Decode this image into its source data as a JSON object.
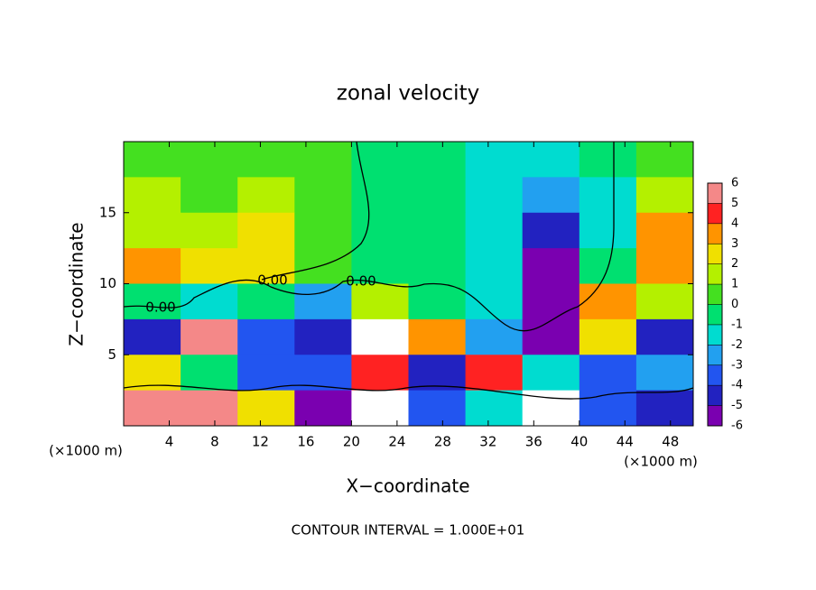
{
  "chart_data": {
    "type": "heatmap",
    "title": "zonal velocity",
    "x_label": "X−coordinate",
    "y_label": "Z−coordinate",
    "x_unit": "(×1000 m)",
    "x_unit_right": "(×1000 m)",
    "footer": "CONTOUR INTERVAL = 1.000E+01",
    "contour_labels": [
      "0.00",
      "0.00",
      "0.00"
    ],
    "xlim": [
      0,
      50
    ],
    "ylim": [
      0,
      20
    ],
    "xticks": [
      4,
      8,
      12,
      16,
      20,
      24,
      28,
      32,
      36,
      40,
      44,
      48
    ],
    "yticks": [
      5,
      10,
      15
    ],
    "x": [
      2.5,
      7.5,
      12.5,
      17.5,
      22.5,
      27.5,
      32.5,
      37.5,
      42.5,
      47.5
    ],
    "y": [
      18.75,
      16.25,
      13.75,
      11.25,
      8.75,
      6.25,
      3.75,
      1.25
    ],
    "z": [
      [
        1,
        1,
        0.5,
        0.5,
        0,
        -0.5,
        -1.5,
        -1,
        0,
        0.5
      ],
      [
        2,
        1,
        1.5,
        1,
        0,
        -0.5,
        -1,
        -2,
        -1,
        2
      ],
      [
        1.5,
        2,
        3,
        0.5,
        0,
        -0.5,
        -1,
        -4,
        -1,
        4
      ],
      [
        4,
        2.5,
        3,
        0.5,
        0,
        -0.5,
        -1,
        -6,
        0,
        4
      ],
      [
        0,
        -1,
        -0.5,
        -2,
        2,
        -0.5,
        -1,
        -5,
        4,
        2
      ],
      [
        -4,
        6,
        -3,
        -4,
        7,
        4,
        -2,
        -5,
        3,
        -4
      ],
      [
        3,
        0,
        -3,
        -3,
        5,
        -4,
        5,
        -1,
        -3,
        -2
      ],
      [
        6,
        6,
        3,
        -5,
        7,
        -3,
        -1,
        7,
        -3,
        -4
      ]
    ],
    "colorbar": {
      "levels": [
        -6,
        -5,
        -4,
        -3,
        -2,
        -1,
        0,
        1,
        2,
        3,
        4,
        5,
        6
      ],
      "colors": [
        "#7a00b0",
        "#2222c0",
        "#2255f0",
        "#22a0f0",
        "#00dcd0",
        "#00e070",
        "#44e020",
        "#b4f000",
        "#f0e000",
        "#ff9400",
        "#ff2222",
        "#f48888"
      ]
    }
  }
}
